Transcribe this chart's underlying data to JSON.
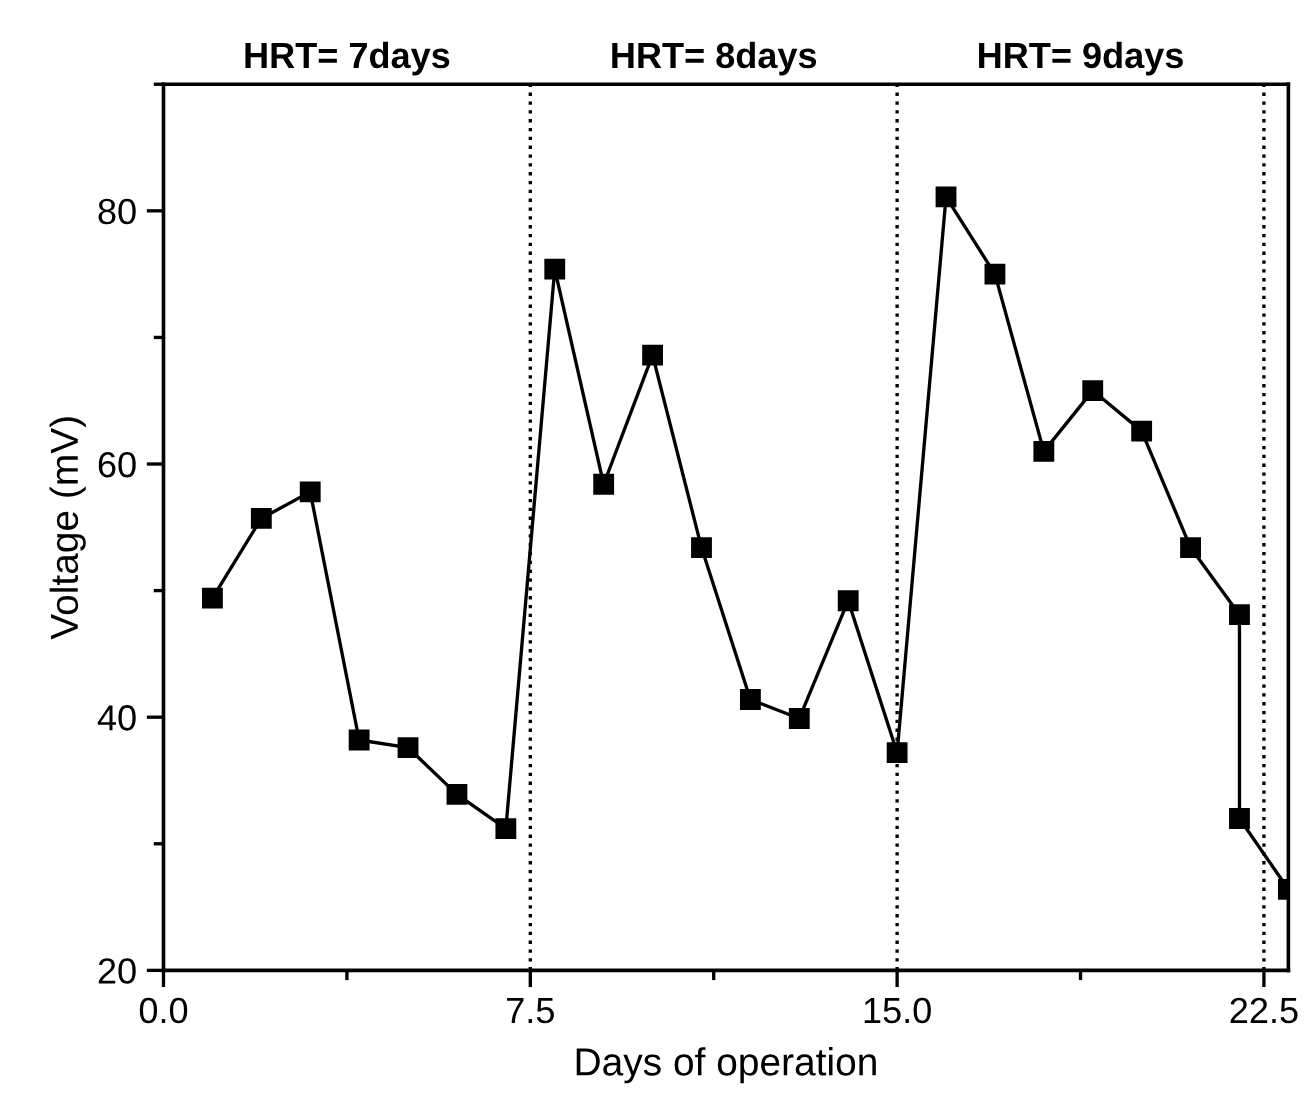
{
  "chart_data": {
    "type": "line",
    "xlabel": "Days of operation",
    "ylabel": "Voltage (mV)",
    "x": [
      1,
      2,
      3,
      4,
      5,
      6,
      7,
      8,
      9,
      10,
      11,
      12,
      13,
      14,
      15,
      16,
      17,
      18,
      19,
      20,
      21,
      22,
      22,
      23
    ],
    "series": [
      {
        "color": "#000000",
        "values": [
          49.4,
          55.7,
          57.8,
          38.2,
          37.6,
          33.9,
          31.2,
          75.4,
          58.4,
          68.6,
          53.4,
          41.4,
          39.9,
          49.2,
          37.2,
          81.1,
          75.0,
          61.0,
          65.8,
          62.6,
          53.4,
          48.1,
          32.0,
          26.4
        ]
      }
    ],
    "xlim": [
      0,
      23
    ],
    "ylim": [
      20,
      90
    ],
    "xticks": [
      {
        "value": 0,
        "label": "0.0"
      },
      7.5,
      {
        "value": 15,
        "label": "15.0"
      },
      22.5
    ],
    "yticks": [
      20,
      40,
      60,
      80
    ],
    "ref_lines": [
      {
        "axis": "x",
        "value": 7.5,
        "line_style": "dotted",
        "color": "#000000"
      },
      {
        "axis": "x",
        "value": 15,
        "line_style": "dotted",
        "color": "#000000"
      },
      {
        "axis": "x",
        "value": 22.5,
        "line_style": "dotted",
        "color": "#000000"
      }
    ],
    "annotations": [
      "HRT= 7days",
      "HRT= 8days",
      "HRT= 9days"
    ],
    "marker": "square",
    "line_style": "solid",
    "grid": false,
    "legend": false
  }
}
